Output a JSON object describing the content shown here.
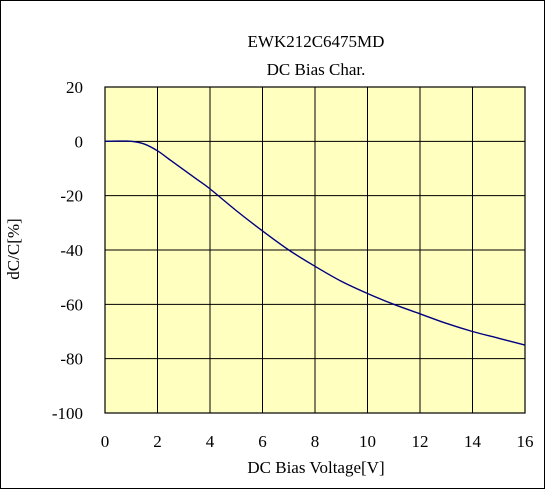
{
  "chart_data": {
    "type": "line",
    "title": "EWK212C6475MD",
    "subtitle": "DC Bias Char.",
    "xlabel": "DC Bias Voltage[V]",
    "ylabel": "dC/C[%]",
    "xlim": [
      0,
      16
    ],
    "ylim": [
      -100,
      20
    ],
    "xticks": [
      "0",
      "2",
      "4",
      "6",
      "8",
      "10",
      "12",
      "14",
      "16"
    ],
    "yticks": [
      "20",
      "0",
      "-20",
      "-40",
      "-60",
      "-80",
      "-100"
    ],
    "grid": true,
    "series": [
      {
        "x": [
          0,
          0.5,
          1.0,
          1.5,
          2.0,
          2.5,
          3.0,
          3.5,
          4.0,
          5.0,
          6.0,
          7.0,
          8.0,
          9.0,
          10.0,
          11.0,
          12.0,
          13.0,
          14.0,
          15.0,
          16.0
        ],
        "y": [
          0,
          0.1,
          0,
          -1,
          -3.5,
          -7,
          -10.5,
          -14,
          -17.5,
          -25.5,
          -33,
          -40,
          -46,
          -51.5,
          -56,
          -60,
          -63.5,
          -67,
          -70,
          -72.5,
          -75
        ],
        "color": "#000080"
      }
    ],
    "plot_background": "#ffffc0"
  }
}
